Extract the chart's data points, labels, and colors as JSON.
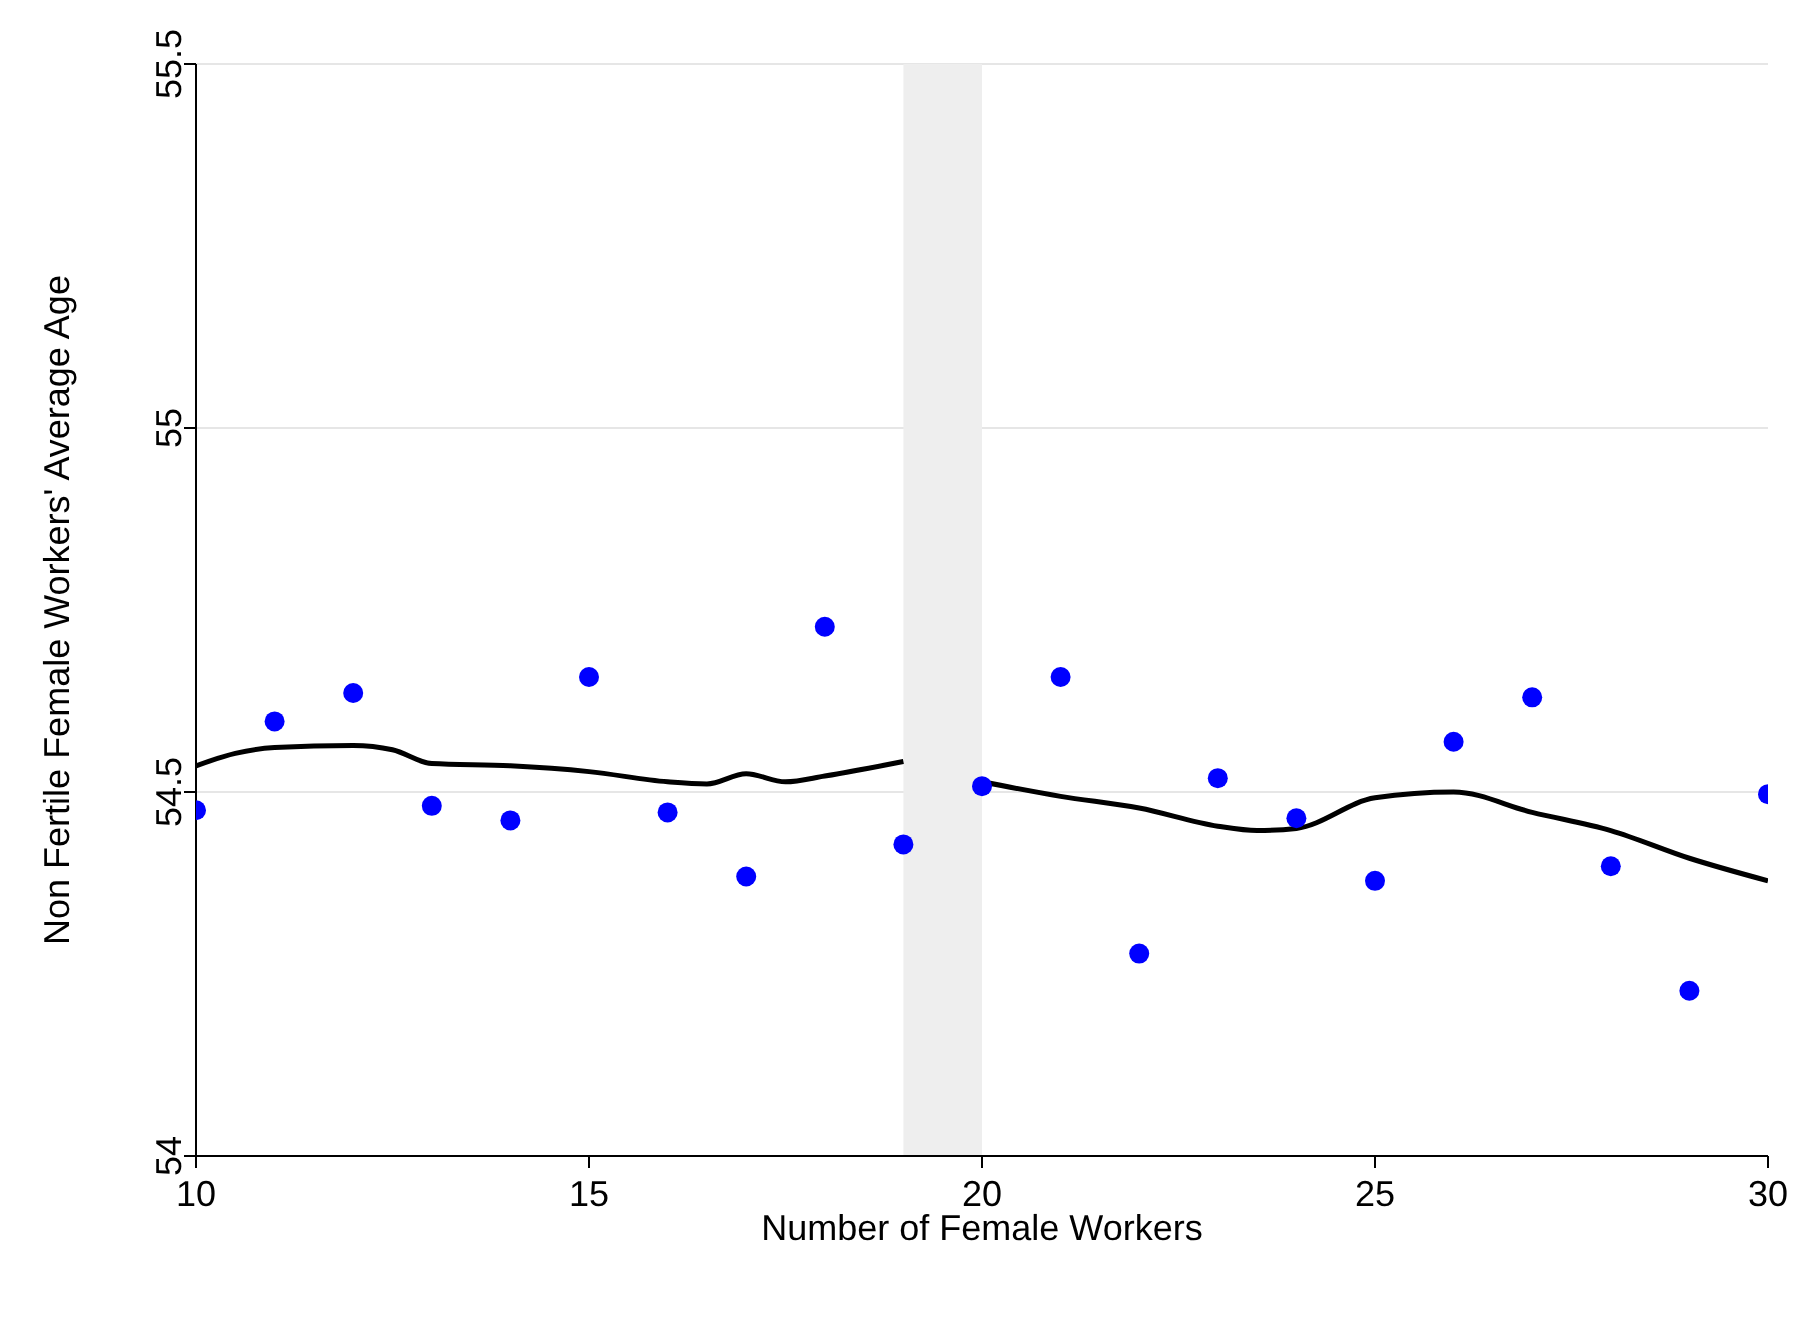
{
  "chart_data": {
    "type": "scatter",
    "xlabel": "Number of Female Workers",
    "ylabel": "Non Fertile Female Workers' Average Age",
    "xlim": [
      10,
      30
    ],
    "xticks": [
      10,
      15,
      20,
      25,
      30
    ],
    "ylim": [
      54,
      55.5
    ],
    "yticks": [
      54,
      54.5,
      55,
      55.5
    ],
    "grid": "y",
    "legend": false,
    "bands": [
      {
        "axis": "x",
        "from": 19,
        "to": 20,
        "color": "#eeeeee"
      }
    ],
    "series": [
      {
        "color": "#0000ff",
        "marker": "circle",
        "x": [
          10,
          11,
          12,
          13,
          14,
          15,
          16,
          17,
          18,
          19,
          20,
          21,
          22,
          23,
          24,
          25,
          26,
          27,
          28,
          29,
          30
        ],
        "values": [
          54.475,
          54.597,
          54.636,
          54.481,
          54.461,
          54.658,
          54.472,
          54.384,
          54.727,
          54.428,
          54.508,
          54.658,
          54.278,
          54.519,
          54.464,
          54.378,
          54.569,
          54.63,
          54.398,
          54.227,
          54.497
        ]
      },
      {
        "type": "line",
        "color": "#000000",
        "marker": "none",
        "x": [
          10,
          10.5,
          11,
          12,
          12.5,
          13,
          14,
          15,
          16,
          16.5,
          17,
          17.5,
          18,
          19
        ],
        "values": [
          54.536,
          54.553,
          54.561,
          54.564,
          54.558,
          54.539,
          54.536,
          54.528,
          54.514,
          54.511,
          54.525,
          54.514,
          54.522,
          54.542
        ]
      },
      {
        "type": "line",
        "color": "#000000",
        "marker": "none",
        "x": [
          20,
          21,
          22,
          23,
          23.5,
          24,
          25,
          26,
          27,
          28,
          29,
          30
        ],
        "values": [
          54.514,
          54.494,
          54.478,
          54.453,
          54.447,
          54.45,
          54.492,
          54.5,
          54.472,
          54.447,
          54.409,
          54.378
        ]
      }
    ]
  }
}
